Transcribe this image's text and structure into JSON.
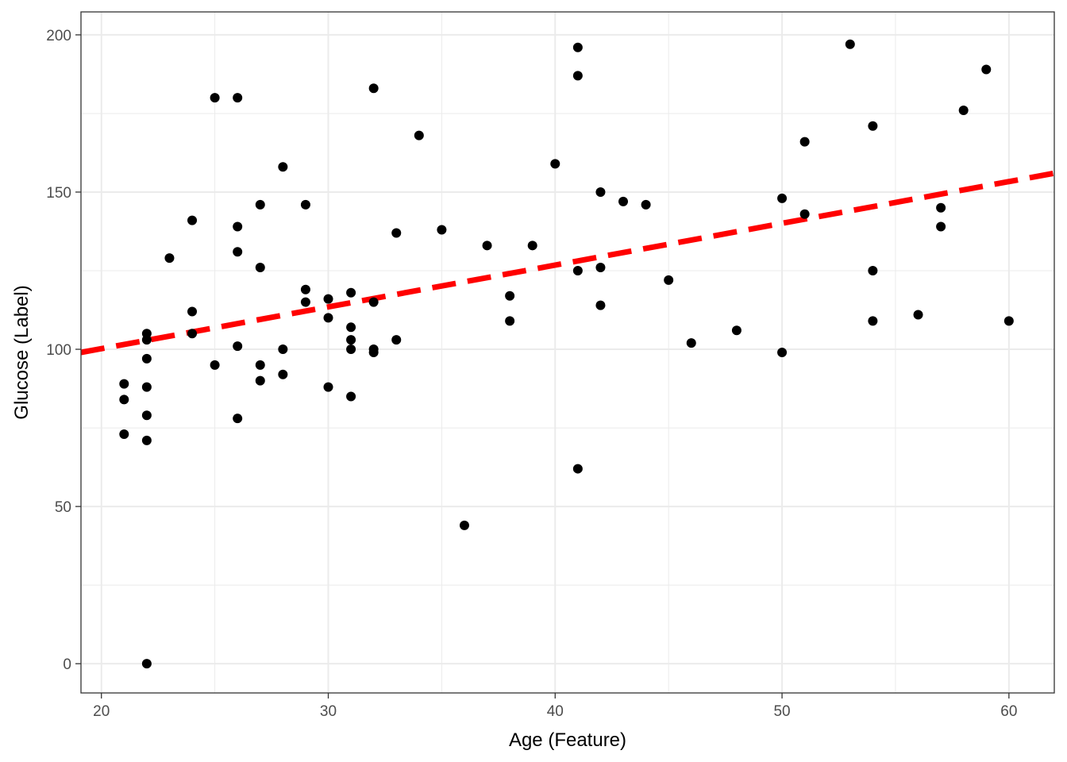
{
  "chart_data": {
    "type": "scatter",
    "title": "",
    "xlabel": "Age (Feature)",
    "ylabel": "Glucose (Label)",
    "xlim": [
      19.1,
      62.0
    ],
    "ylim": [
      -9.3,
      207.3
    ],
    "x_ticks": [
      20,
      30,
      40,
      50,
      60
    ],
    "y_ticks": [
      0,
      50,
      100,
      150,
      200
    ],
    "grid": true,
    "legend": "none",
    "point_color": "#000000",
    "points": [
      [
        21,
        89
      ],
      [
        21,
        84
      ],
      [
        21,
        73
      ],
      [
        22,
        105
      ],
      [
        22,
        103
      ],
      [
        22,
        97
      ],
      [
        22,
        88
      ],
      [
        22,
        79
      ],
      [
        22,
        71
      ],
      [
        22,
        0
      ],
      [
        23,
        129
      ],
      [
        24,
        141
      ],
      [
        24,
        112
      ],
      [
        24,
        105
      ],
      [
        25,
        180
      ],
      [
        25,
        95
      ],
      [
        26,
        180
      ],
      [
        26,
        139
      ],
      [
        26,
        131
      ],
      [
        26,
        101
      ],
      [
        26,
        78
      ],
      [
        27,
        146
      ],
      [
        27,
        126
      ],
      [
        27,
        95
      ],
      [
        27,
        90
      ],
      [
        28,
        158
      ],
      [
        28,
        100
      ],
      [
        28,
        92
      ],
      [
        29,
        146
      ],
      [
        29,
        119
      ],
      [
        29,
        115
      ],
      [
        30,
        116
      ],
      [
        30,
        110
      ],
      [
        30,
        88
      ],
      [
        31,
        118
      ],
      [
        31,
        107
      ],
      [
        31,
        103
      ],
      [
        31,
        100
      ],
      [
        31,
        85
      ],
      [
        32,
        183
      ],
      [
        32,
        115
      ],
      [
        32,
        100
      ],
      [
        32,
        99
      ],
      [
        33,
        137
      ],
      [
        33,
        103
      ],
      [
        34,
        168
      ],
      [
        35,
        138
      ],
      [
        36,
        44
      ],
      [
        37,
        133
      ],
      [
        38,
        117
      ],
      [
        38,
        109
      ],
      [
        39,
        133
      ],
      [
        40,
        159
      ],
      [
        41,
        196
      ],
      [
        41,
        187
      ],
      [
        41,
        125
      ],
      [
        41,
        62
      ],
      [
        42,
        150
      ],
      [
        42,
        126
      ],
      [
        42,
        114
      ],
      [
        43,
        147
      ],
      [
        44,
        146
      ],
      [
        45,
        122
      ],
      [
        46,
        102
      ],
      [
        48,
        106
      ],
      [
        50,
        148
      ],
      [
        50,
        99
      ],
      [
        51,
        166
      ],
      [
        51,
        143
      ],
      [
        53,
        197
      ],
      [
        54,
        171
      ],
      [
        54,
        125
      ],
      [
        54,
        109
      ],
      [
        56,
        111
      ],
      [
        57,
        145
      ],
      [
        57,
        139
      ],
      [
        58,
        176
      ],
      [
        59,
        189
      ],
      [
        60,
        109
      ]
    ],
    "trend_line": {
      "style": "dashed",
      "color": "#ff0000",
      "x": [
        19.1,
        62.0
      ],
      "y": [
        99.0,
        156.0
      ]
    }
  }
}
